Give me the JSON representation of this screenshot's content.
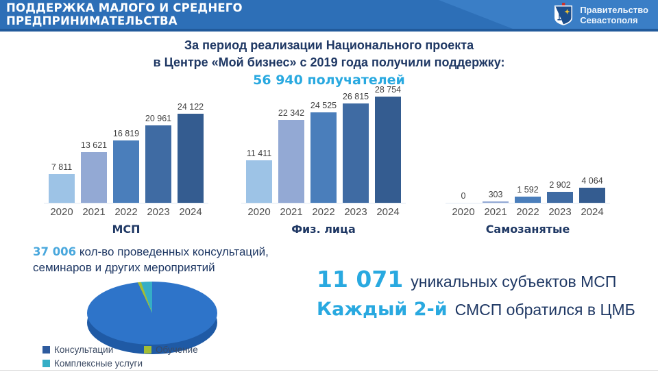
{
  "header": {
    "title_line1": "ПОДДЕРЖКА МАЛОГО И СРЕДНЕГО",
    "title_line2": "ПРЕДПРИНИМАТЕЛЬСТВА",
    "org_line1": "Правительство",
    "org_line2": "Севастополя"
  },
  "intro": {
    "line1": "За период реализации Национального проекта",
    "line2": "в Центре «Мой бизнес» с 2019 года получили поддержку:",
    "highlight": "56 940 получателей"
  },
  "chart_data": [
    {
      "type": "bar",
      "title": "МСП",
      "categories": [
        "2020",
        "2021",
        "2022",
        "2023",
        "2024"
      ],
      "values": [
        7811,
        13621,
        16819,
        20961,
        24122
      ],
      "value_labels": [
        "7 811",
        "13 621",
        "16 819",
        "20 961",
        "24 122"
      ],
      "ylim": [
        0,
        28754
      ],
      "grid": false,
      "legend_position": "none"
    },
    {
      "type": "bar",
      "title": "Физ. лица",
      "categories": [
        "2020",
        "2021",
        "2022",
        "2023",
        "2024"
      ],
      "values": [
        11411,
        22342,
        24525,
        26815,
        28754
      ],
      "value_labels": [
        "11 411",
        "22 342",
        "24 525",
        "26 815",
        "28 754"
      ],
      "ylim": [
        0,
        28754
      ],
      "grid": false,
      "legend_position": "none"
    },
    {
      "type": "bar",
      "title": "Самозанятые",
      "categories": [
        "2020",
        "2021",
        "2022",
        "2023",
        "2024"
      ],
      "values": [
        0,
        303,
        1592,
        2902,
        4064
      ],
      "value_labels": [
        "0",
        "303",
        "1 592",
        "2 902",
        "4 064"
      ],
      "ylim": [
        0,
        28754
      ],
      "grid": false,
      "legend_position": "none"
    },
    {
      "type": "pie",
      "style": "3d",
      "legend_position": "bottom-left",
      "slices": [
        {
          "name": "Консультации",
          "share_pct_estimated": 93,
          "color": "#2e74c9",
          "legend_color": "#2e5b9e"
        },
        {
          "name": "Обучение",
          "share_pct_estimated": 1.5,
          "color": "#a2bd35",
          "legend_color": "#a2bd35"
        },
        {
          "name": "Комплексные услуги",
          "share_pct_estimated": 5.5,
          "color": "#35aec6",
          "legend_color": "#35aec6"
        }
      ]
    }
  ],
  "consultations": {
    "number": "37 006",
    "line1_rest": " кол-во проведенных консультаций,",
    "line2": "семинаров и других мероприятий"
  },
  "facts": {
    "number1": "11 071",
    "text1": "уникальных субъектов МСП",
    "number2": "Каждый 2-й",
    "text2": "СМСП обратился в ЦМБ"
  },
  "colors": {
    "header_bg": "#2d6fb7",
    "header_diag": "#3a7ec6",
    "header_edge": "#215a9b",
    "navy_text": "#1f3864",
    "accent_blue": "#29a9e0",
    "bar_palette": [
      "#9dc3e6",
      "#93a9d4",
      "#4a7ebb",
      "#3f6ba3",
      "#345c90"
    ],
    "pie_depth": "#1f5aa5",
    "year_label": "#4d4d4d",
    "value_label": "#404040"
  }
}
